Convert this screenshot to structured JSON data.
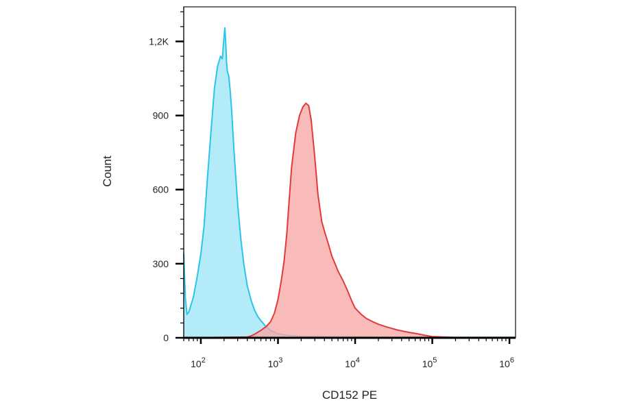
{
  "chart_data": {
    "type": "area",
    "xlabel": "CD152 PE",
    "ylabel": "Count",
    "x_scale": "log",
    "xlim": [
      60,
      1200000
    ],
    "ylim": [
      0,
      1340
    ],
    "grid": false,
    "x_ticks": [
      {
        "value": 100,
        "base": "10",
        "exp": "2"
      },
      {
        "value": 1000,
        "base": "10",
        "exp": "3"
      },
      {
        "value": 10000,
        "base": "10",
        "exp": "4"
      },
      {
        "value": 100000,
        "base": "10",
        "exp": "5"
      },
      {
        "value": 1000000,
        "base": "10",
        "exp": "6"
      }
    ],
    "y_ticks": [
      {
        "value": 0,
        "label": "0"
      },
      {
        "value": 300,
        "label": "300"
      },
      {
        "value": 600,
        "label": "600"
      },
      {
        "value": 900,
        "label": "900"
      },
      {
        "value": 1200,
        "label": "1,2K"
      }
    ],
    "series": [
      {
        "color": "#29c4ea",
        "fill": "#9ee6f7",
        "x": [
          60,
          63,
          66,
          70,
          80,
          90,
          100,
          110,
          120,
          135,
          150,
          165,
          180,
          190,
          200,
          205,
          210,
          215,
          220,
          230,
          240,
          250,
          270,
          300,
          330,
          360,
          400,
          450,
          500,
          550,
          600,
          700,
          800,
          900,
          1000,
          1300,
          1600,
          2000,
          3000,
          5000,
          10000,
          30000,
          100000,
          1000000,
          1200000
        ],
        "y": [
          340,
          160,
          95,
          105,
          165,
          250,
          340,
          450,
          620,
          830,
          1010,
          1100,
          1140,
          1130,
          1220,
          1255,
          1200,
          1120,
          1080,
          1060,
          1000,
          930,
          750,
          540,
          400,
          300,
          210,
          150,
          110,
          85,
          70,
          45,
          30,
          22,
          16,
          10,
          8,
          6,
          5,
          4,
          3,
          2,
          2,
          2,
          2
        ]
      },
      {
        "color": "#e23a3a",
        "fill": "#f7a6a6",
        "x": [
          60,
          400,
          450,
          500,
          600,
          700,
          800,
          900,
          1000,
          1100,
          1200,
          1300,
          1400,
          1500,
          1700,
          1900,
          2100,
          2300,
          2500,
          2700,
          3000,
          3300,
          3700,
          4100,
          4500,
          5000,
          5500,
          6000,
          7000,
          8000,
          9000,
          10000,
          12000,
          14000,
          17000,
          20000,
          25000,
          30000,
          35000,
          40000,
          50000,
          60000,
          70000,
          80000,
          100000,
          200000,
          1200000
        ],
        "y": [
          0,
          3,
          8,
          15,
          30,
          45,
          65,
          100,
          155,
          230,
          310,
          420,
          560,
          690,
          830,
          900,
          935,
          950,
          940,
          880,
          730,
          580,
          470,
          420,
          380,
          330,
          300,
          270,
          230,
          190,
          150,
          120,
          95,
          78,
          65,
          55,
          45,
          38,
          32,
          28,
          22,
          18,
          14,
          10,
          5,
          1,
          0
        ]
      }
    ]
  }
}
